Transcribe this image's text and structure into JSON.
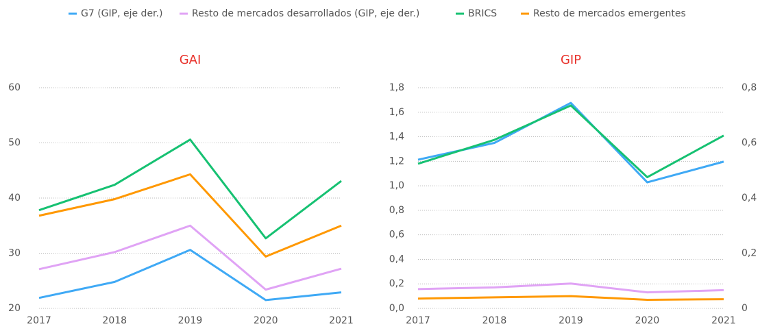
{
  "chart_data": [
    {
      "type": "line",
      "title": "GAI",
      "title_color": "#e8322b",
      "categories": [
        "2017",
        "2018",
        "2019",
        "2020",
        "2021"
      ],
      "ylim": [
        20,
        60
      ],
      "yticks": [
        20,
        30,
        40,
        50,
        60
      ],
      "grid": true,
      "series": [
        {
          "color": "#3fa9f5",
          "values": [
            21.9,
            24.8,
            30.6,
            21.5,
            22.9
          ]
        },
        {
          "color": "#e0a3f5",
          "values": [
            27.1,
            30.2,
            35.0,
            23.4,
            27.2
          ]
        },
        {
          "color": "#16c172",
          "values": [
            37.8,
            42.4,
            50.6,
            32.7,
            43.1
          ]
        },
        {
          "color": "#ff9800",
          "values": [
            36.8,
            39.8,
            44.3,
            29.4,
            35.0
          ]
        }
      ]
    },
    {
      "type": "line",
      "title": "GIP",
      "title_color": "#e8322b",
      "categories": [
        "2017",
        "2018",
        "2019",
        "2020",
        "2021"
      ],
      "ylim": [
        0,
        1.8
      ],
      "yticks": [
        {
          "value": 0,
          "label": "0,0"
        },
        {
          "value": 0.2,
          "label": "0,2"
        },
        {
          "value": 0.4,
          "label": "0,4"
        },
        {
          "value": 0.6,
          "label": "0,6"
        },
        {
          "value": 0.8,
          "label": "0,8"
        },
        {
          "value": 1.0,
          "label": "1,0"
        },
        {
          "value": 1.2,
          "label": "1,2"
        },
        {
          "value": 1.4,
          "label": "1,4"
        },
        {
          "value": 1.6,
          "label": "1,6"
        },
        {
          "value": 1.8,
          "label": "1,8"
        }
      ],
      "y2lim": [
        0,
        0.8
      ],
      "y2ticks": [
        0,
        {
          "value": 0.2,
          "label": "0,2"
        },
        {
          "value": 0.4,
          "label": "0,4"
        },
        {
          "value": 0.6,
          "label": "0,6"
        },
        {
          "value": 0.8,
          "label": "0,8"
        }
      ],
      "grid": true,
      "series": [
        {
          "name": "G7 (GIP, eje der.)",
          "color": "#3fa9f5",
          "axis": "y2",
          "values": [
            0.539,
            0.6,
            0.745,
            0.457,
            0.532
          ]
        },
        {
          "name": "Resto de mercados desarrollados (GIP, eje der.)",
          "color": "#e0a3f5",
          "axis": "y2",
          "values": [
            0.07,
            0.076,
            0.09,
            0.058,
            0.066
          ]
        },
        {
          "name": "BRICS",
          "color": "#16c172",
          "values": [
            1.18,
            1.375,
            1.655,
            1.07,
            1.41
          ]
        },
        {
          "name": "Resto de mercados emergentes",
          "color": "#ff9800",
          "values": [
            0.08,
            0.09,
            0.1,
            0.07,
            0.075
          ]
        }
      ]
    }
  ]
}
